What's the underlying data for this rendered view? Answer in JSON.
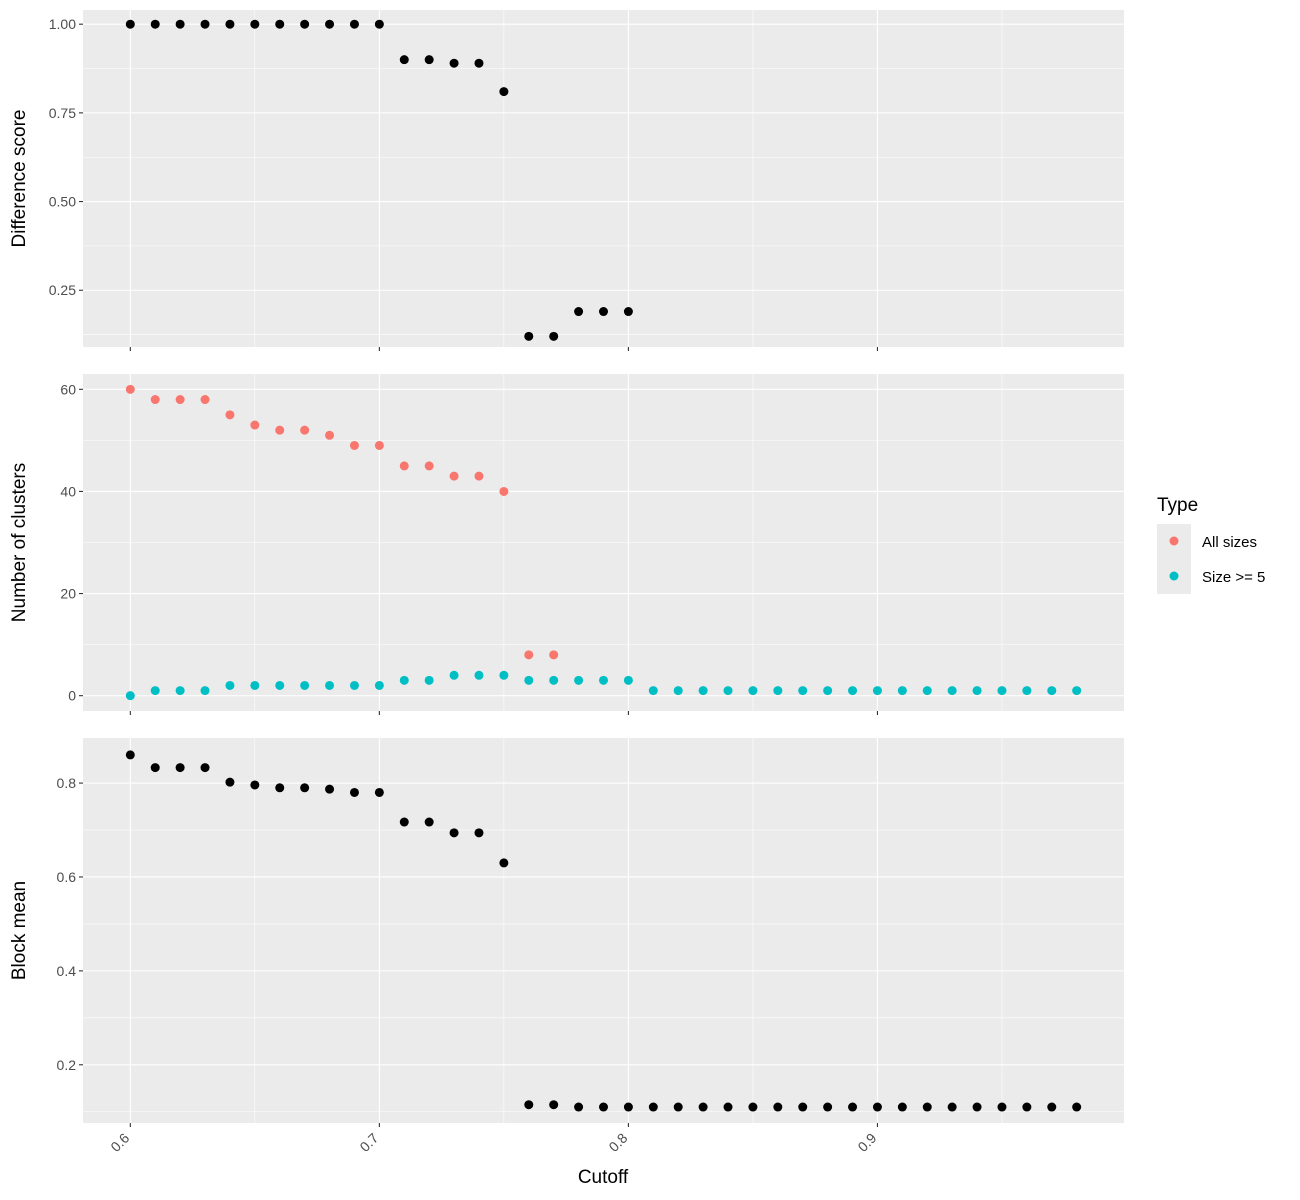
{
  "chart_data": [
    {
      "type": "scatter",
      "title": "",
      "xlabel": "",
      "ylabel": "Difference score",
      "xlim": [
        0.581,
        0.999
      ],
      "ylim": [
        0.09,
        1.04
      ],
      "xticks": [
        0.6,
        0.7,
        0.8,
        0.9
      ],
      "yticks": [
        0.25,
        0.5,
        0.75,
        1.0
      ],
      "ytick_labels": [
        "0.25",
        "0.50",
        "0.75",
        "1.00"
      ],
      "grid": true,
      "series": [
        {
          "color": "#000000",
          "x": [
            0.6,
            0.61,
            0.62,
            0.63,
            0.64,
            0.65,
            0.66,
            0.67,
            0.68,
            0.69,
            0.7,
            0.71,
            0.72,
            0.73,
            0.74,
            0.75,
            0.76,
            0.77,
            0.78,
            0.79,
            0.8
          ],
          "y": [
            1.0,
            1.0,
            1.0,
            1.0,
            1.0,
            1.0,
            1.0,
            1.0,
            1.0,
            1.0,
            1.0,
            0.9,
            0.9,
            0.89,
            0.89,
            0.81,
            0.12,
            0.12,
            0.19,
            0.19,
            0.19
          ]
        }
      ]
    },
    {
      "type": "scatter",
      "title": "",
      "xlabel": "",
      "ylabel": "Number of clusters",
      "xlim": [
        0.581,
        0.999
      ],
      "ylim": [
        -3,
        63
      ],
      "xticks": [
        0.6,
        0.7,
        0.8,
        0.9
      ],
      "yticks": [
        0,
        20,
        40,
        60
      ],
      "ytick_labels": [
        "0",
        "20",
        "40",
        "60"
      ],
      "grid": true,
      "legend": {
        "title": "Type",
        "placement": "right"
      },
      "series": [
        {
          "name": "All sizes",
          "color": "#F8766D",
          "x": [
            0.6,
            0.61,
            0.62,
            0.63,
            0.64,
            0.65,
            0.66,
            0.67,
            0.68,
            0.69,
            0.7,
            0.71,
            0.72,
            0.73,
            0.74,
            0.75,
            0.76,
            0.77
          ],
          "y": [
            60,
            58,
            58,
            58,
            55,
            53,
            52,
            52,
            51,
            49,
            49,
            45,
            45,
            43,
            43,
            40,
            8,
            8
          ]
        },
        {
          "name": "Size >= 5",
          "color": "#00BFC4",
          "x": [
            0.6,
            0.61,
            0.62,
            0.63,
            0.64,
            0.65,
            0.66,
            0.67,
            0.68,
            0.69,
            0.7,
            0.71,
            0.72,
            0.73,
            0.74,
            0.75,
            0.76,
            0.77,
            0.78,
            0.79,
            0.8,
            0.81,
            0.82,
            0.83,
            0.84,
            0.85,
            0.86,
            0.87,
            0.88,
            0.89,
            0.9,
            0.91,
            0.92,
            0.93,
            0.94,
            0.95,
            0.96,
            0.97,
            0.98
          ],
          "y": [
            0,
            1,
            1,
            1,
            2,
            2,
            2,
            2,
            2,
            2,
            2,
            3,
            3,
            4,
            4,
            4,
            3,
            3,
            3,
            3,
            3,
            1,
            1,
            1,
            1,
            1,
            1,
            1,
            1,
            1,
            1,
            1,
            1,
            1,
            1,
            1,
            1,
            1,
            1
          ]
        }
      ]
    },
    {
      "type": "scatter",
      "title": "",
      "xlabel": "Cutoff",
      "ylabel": "Block mean",
      "xlim": [
        0.581,
        0.999
      ],
      "ylim": [
        0.076,
        0.896
      ],
      "xticks": [
        0.6,
        0.7,
        0.8,
        0.9
      ],
      "xtick_labels": [
        "0.6",
        "0.7",
        "0.8",
        "0.9"
      ],
      "yticks": [
        0.2,
        0.4,
        0.6,
        0.8
      ],
      "ytick_labels": [
        "0.2",
        "0.4",
        "0.6",
        "0.8"
      ],
      "grid": true,
      "series": [
        {
          "color": "#000000",
          "x": [
            0.6,
            0.61,
            0.62,
            0.63,
            0.64,
            0.65,
            0.66,
            0.67,
            0.68,
            0.69,
            0.7,
            0.71,
            0.72,
            0.73,
            0.74,
            0.75,
            0.76,
            0.77,
            0.78,
            0.79,
            0.8,
            0.81,
            0.82,
            0.83,
            0.84,
            0.85,
            0.86,
            0.87,
            0.88,
            0.89,
            0.9,
            0.91,
            0.92,
            0.93,
            0.94,
            0.95,
            0.96,
            0.97,
            0.98
          ],
          "y": [
            0.86,
            0.833,
            0.833,
            0.833,
            0.802,
            0.796,
            0.79,
            0.79,
            0.787,
            0.78,
            0.78,
            0.717,
            0.717,
            0.694,
            0.694,
            0.63,
            0.115,
            0.115,
            0.11,
            0.11,
            0.11,
            0.11,
            0.11,
            0.11,
            0.11,
            0.11,
            0.11,
            0.11,
            0.11,
            0.11,
            0.11,
            0.11,
            0.11,
            0.11,
            0.11,
            0.11,
            0.11,
            0.11,
            0.11
          ]
        }
      ]
    }
  ]
}
